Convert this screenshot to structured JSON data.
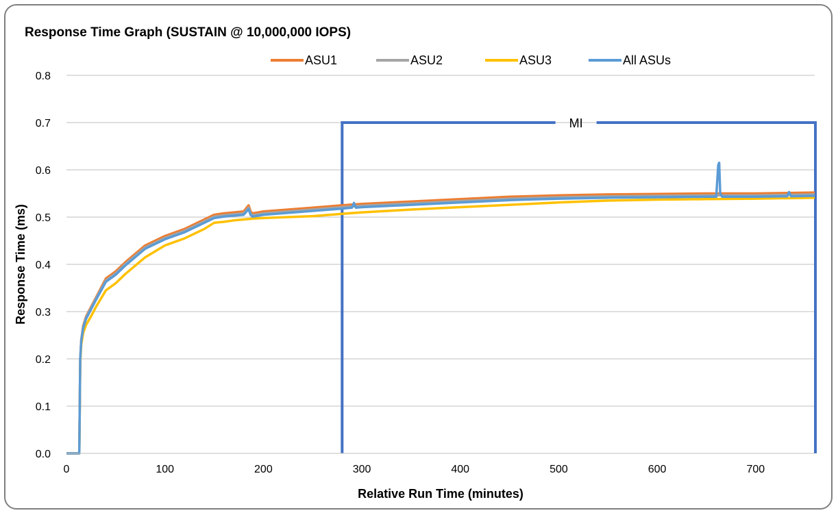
{
  "chart_data": {
    "type": "line",
    "title": "Response Time Graph (SUSTAIN @ 10,000,000 IOPS)",
    "xlabel": "Relative Run Time (minutes)",
    "ylabel": "Response Time (ms)",
    "xlim": [
      0,
      760
    ],
    "ylim": [
      0,
      0.8
    ],
    "x_ticks": [
      "0",
      "100",
      "200",
      "300",
      "400",
      "500",
      "600",
      "700"
    ],
    "y_ticks": [
      "0.0",
      "0.1",
      "0.2",
      "0.3",
      "0.4",
      "0.5",
      "0.6",
      "0.7",
      "0.8"
    ],
    "grid": true,
    "legend_position": "top",
    "series": [
      {
        "name": "ASU1",
        "color": "#ed7d31",
        "x": [
          0,
          13,
          14,
          15,
          17,
          20,
          25,
          30,
          40,
          50,
          60,
          80,
          100,
          120,
          140,
          150,
          160,
          170,
          180,
          185,
          187,
          189,
          195,
          200,
          250,
          280,
          300,
          350,
          400,
          450,
          500,
          550,
          600,
          650,
          700,
          760
        ],
        "y": [
          0.0,
          0.0,
          0.2,
          0.24,
          0.27,
          0.29,
          0.31,
          0.33,
          0.37,
          0.385,
          0.405,
          0.44,
          0.46,
          0.475,
          0.495,
          0.505,
          0.508,
          0.51,
          0.512,
          0.525,
          0.512,
          0.508,
          0.51,
          0.512,
          0.52,
          0.525,
          0.528,
          0.533,
          0.538,
          0.543,
          0.546,
          0.548,
          0.549,
          0.55,
          0.55,
          0.552
        ]
      },
      {
        "name": "ASU2",
        "color": "#a5a5a5",
        "x": [
          0,
          13,
          14,
          15,
          17,
          20,
          25,
          30,
          40,
          50,
          60,
          80,
          100,
          120,
          140,
          150,
          160,
          170,
          180,
          185,
          187,
          189,
          195,
          200,
          250,
          280,
          300,
          350,
          400,
          450,
          500,
          550,
          600,
          650,
          700,
          760
        ],
        "y": [
          0.0,
          0.0,
          0.2,
          0.24,
          0.268,
          0.288,
          0.308,
          0.328,
          0.366,
          0.381,
          0.401,
          0.436,
          0.456,
          0.471,
          0.491,
          0.501,
          0.504,
          0.506,
          0.508,
          0.52,
          0.508,
          0.504,
          0.506,
          0.508,
          0.516,
          0.521,
          0.524,
          0.529,
          0.534,
          0.539,
          0.542,
          0.544,
          0.545,
          0.546,
          0.546,
          0.548
        ]
      },
      {
        "name": "ASU3",
        "color": "#ffc000",
        "x": [
          0,
          13,
          14,
          15,
          17,
          20,
          25,
          30,
          40,
          50,
          60,
          80,
          100,
          120,
          140,
          150,
          160,
          170,
          180,
          190,
          200,
          250,
          280,
          300,
          350,
          400,
          450,
          500,
          550,
          600,
          650,
          700,
          760
        ],
        "y": [
          0.0,
          0.0,
          0.19,
          0.23,
          0.255,
          0.272,
          0.29,
          0.31,
          0.345,
          0.36,
          0.38,
          0.415,
          0.44,
          0.455,
          0.475,
          0.488,
          0.49,
          0.493,
          0.495,
          0.497,
          0.498,
          0.502,
          0.507,
          0.51,
          0.516,
          0.521,
          0.526,
          0.531,
          0.535,
          0.537,
          0.538,
          0.539,
          0.541
        ]
      },
      {
        "name": "All ASUs",
        "color": "#5b9bd5",
        "x": [
          0,
          13,
          14,
          15,
          17,
          20,
          25,
          30,
          40,
          50,
          60,
          80,
          100,
          120,
          140,
          150,
          160,
          170,
          180,
          185,
          187,
          189,
          195,
          200,
          250,
          280,
          290,
          292,
          294,
          300,
          350,
          400,
          450,
          500,
          550,
          600,
          650,
          660,
          662,
          663,
          664,
          666,
          700,
          732,
          734,
          736,
          760
        ],
        "y": [
          0.0,
          0.0,
          0.2,
          0.238,
          0.265,
          0.285,
          0.305,
          0.325,
          0.363,
          0.378,
          0.398,
          0.433,
          0.453,
          0.468,
          0.488,
          0.498,
          0.501,
          0.503,
          0.505,
          0.517,
          0.505,
          0.501,
          0.503,
          0.505,
          0.513,
          0.518,
          0.52,
          0.53,
          0.52,
          0.521,
          0.526,
          0.531,
          0.536,
          0.539,
          0.541,
          0.542,
          0.543,
          0.543,
          0.61,
          0.615,
          0.55,
          0.543,
          0.543,
          0.544,
          0.553,
          0.544,
          0.545
        ]
      }
    ],
    "annotation": {
      "label": "MI",
      "x_start": 280,
      "x_end": 760,
      "y": 0.7,
      "color": "#4472c4"
    }
  }
}
